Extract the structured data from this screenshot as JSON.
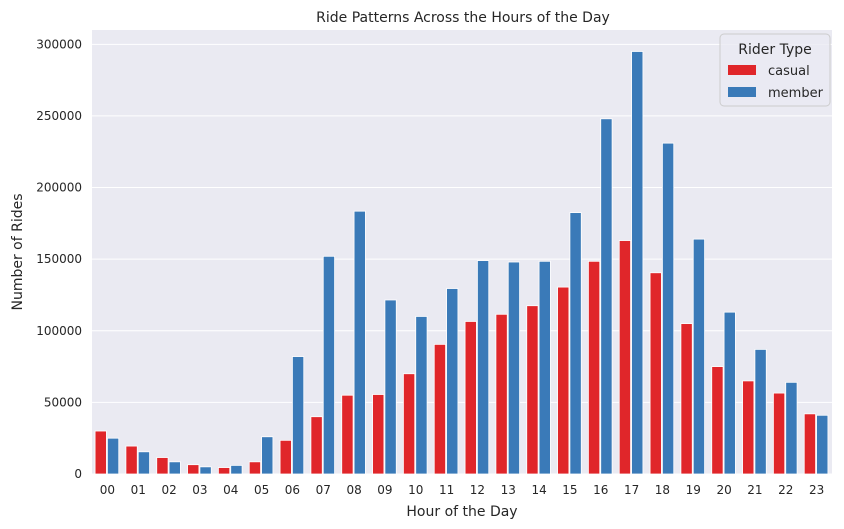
{
  "chart_data": {
    "type": "bar",
    "title": "Ride Patterns Across the Hours of the Day",
    "xlabel": "Hour of the Day",
    "ylabel": "Number of Rides",
    "categories": [
      "00",
      "01",
      "02",
      "03",
      "04",
      "05",
      "06",
      "07",
      "08",
      "09",
      "10",
      "11",
      "12",
      "13",
      "14",
      "15",
      "16",
      "17",
      "18",
      "19",
      "20",
      "21",
      "22",
      "23"
    ],
    "series": [
      {
        "name": "casual",
        "color": "#e0262a",
        "values": [
          30000,
          19500,
          11500,
          6500,
          4500,
          8500,
          23500,
          40000,
          55000,
          55500,
          70000,
          90500,
          106500,
          111500,
          117500,
          130500,
          148500,
          163000,
          140500,
          105000,
          75000,
          65000,
          56500,
          42000
        ]
      },
      {
        "name": "member",
        "color": "#3a7ab8",
        "values": [
          25000,
          15500,
          8500,
          5000,
          6000,
          26000,
          82000,
          152000,
          183500,
          121500,
          110000,
          129500,
          149000,
          148000,
          148500,
          182500,
          248000,
          295000,
          231000,
          164000,
          113000,
          87000,
          64000,
          41000
        ]
      }
    ],
    "ylim": [
      0,
      310000
    ],
    "yticks": [
      0,
      50000,
      100000,
      150000,
      200000,
      250000,
      300000
    ],
    "ytick_labels": [
      "0",
      "50000",
      "100000",
      "150000",
      "200000",
      "250000",
      "300000"
    ],
    "legend": {
      "title": "Rider Type",
      "position": "top-right"
    },
    "grid": true,
    "background_color": "#eaeaf2"
  }
}
